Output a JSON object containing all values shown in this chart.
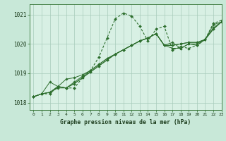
{
  "title": "Graphe pression niveau de la mer (hPa)",
  "bg_color": "#c8e8d8",
  "plot_bg_color": "#d8f0e4",
  "line_color": "#2d6e2d",
  "grid_color": "#a8ccbb",
  "xlim": [
    -0.5,
    23
  ],
  "ylim": [
    1017.75,
    1021.35
  ],
  "yticks": [
    1018,
    1019,
    1020,
    1021
  ],
  "xticks": [
    0,
    1,
    2,
    3,
    4,
    5,
    6,
    7,
    8,
    9,
    10,
    11,
    12,
    13,
    14,
    15,
    16,
    17,
    18,
    19,
    20,
    21,
    22,
    23
  ],
  "jagged": [
    1018.2,
    1018.3,
    1018.3,
    1018.55,
    1018.5,
    1018.5,
    1018.85,
    1019.1,
    1019.55,
    1020.2,
    1020.85,
    1021.05,
    1020.95,
    1020.6,
    1020.1,
    1020.5,
    1020.6,
    1019.8,
    1019.9,
    1019.85,
    1019.95,
    1020.15,
    1020.7,
    1020.8
  ],
  "line1": [
    1018.2,
    1018.3,
    1018.35,
    1018.55,
    1018.5,
    1018.65,
    1018.85,
    1019.05,
    1019.25,
    1019.45,
    1019.65,
    1019.8,
    1019.95,
    1020.1,
    1020.2,
    1020.35,
    1019.95,
    1019.95,
    1020.0,
    1020.05,
    1020.05,
    1020.15,
    1020.65,
    1020.75
  ],
  "line2": [
    1018.2,
    1018.3,
    1018.35,
    1018.55,
    1018.5,
    1018.65,
    1018.85,
    1019.05,
    1019.25,
    1019.45,
    1019.65,
    1019.8,
    1019.95,
    1020.1,
    1020.2,
    1020.35,
    1019.95,
    1019.95,
    1020.0,
    1020.05,
    1020.05,
    1020.15,
    1020.55,
    1020.75
  ],
  "line3": [
    1018.2,
    1018.3,
    1018.7,
    1018.55,
    1018.8,
    1018.85,
    1018.95,
    1019.1,
    1019.3,
    1019.5,
    1019.65,
    1019.8,
    1019.95,
    1020.1,
    1020.2,
    1020.35,
    1019.95,
    1020.05,
    1019.85,
    1020.0,
    1020.0,
    1020.15,
    1020.5,
    1020.75
  ],
  "line4": [
    1018.2,
    1018.3,
    1018.35,
    1018.5,
    1018.5,
    1018.7,
    1018.9,
    1019.1,
    1019.3,
    1019.5,
    1019.65,
    1019.8,
    1019.95,
    1020.1,
    1020.2,
    1020.35,
    1019.95,
    1019.85,
    1019.85,
    1020.0,
    1019.95,
    1020.15,
    1020.5,
    1020.75
  ]
}
